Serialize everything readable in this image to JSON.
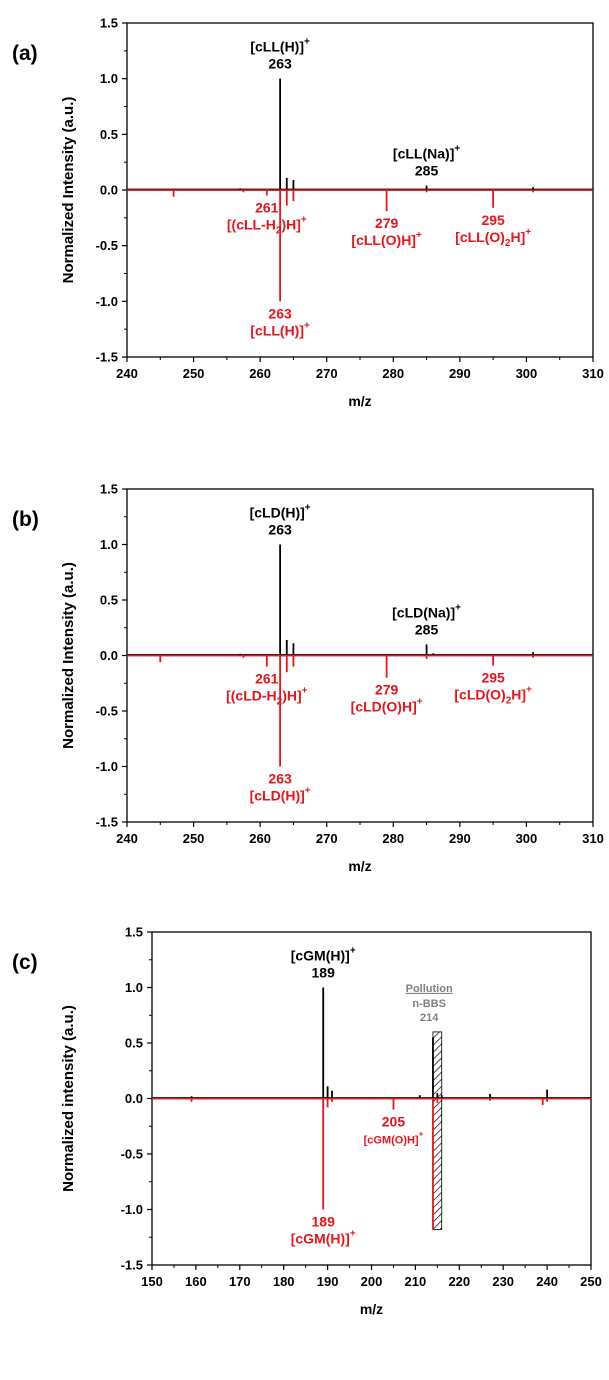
{
  "colors": {
    "measured": "#000000",
    "simulated": "#e8141b",
    "pollution": "#808080"
  },
  "chart_data": [
    {
      "type": "line",
      "panel_label": "(a)",
      "xlabel": "m/z",
      "ylabel": "Normalized Intensity (a.u.)",
      "xlim": [
        240,
        310
      ],
      "ylim": [
        -1.5,
        1.5
      ],
      "xticks": [
        "240",
        "250",
        "260",
        "270",
        "280",
        "290",
        "300",
        "310"
      ],
      "yticks": [
        "1.5",
        "1.0",
        "0.5",
        "0.0",
        "-0.5",
        "-1.0",
        "-1.5"
      ],
      "series": [
        {
          "color": "#000000",
          "peaks": [
            [
              247,
              0.01
            ],
            [
              257,
              0.015
            ],
            [
              258,
              0.01
            ],
            [
              262,
              0.01
            ],
            [
              263,
              1.0
            ],
            [
              264,
              0.11
            ],
            [
              265,
              0.09
            ],
            [
              269,
              0.01
            ],
            [
              279,
              0.01
            ],
            [
              285,
              0.04
            ],
            [
              286,
              0.01
            ],
            [
              301,
              0.025
            ]
          ]
        },
        {
          "color": "#e8141b",
          "peaks": [
            [
              247,
              -0.06
            ],
            [
              257.5,
              -0.02
            ],
            [
              261,
              -0.05
            ],
            [
              263,
              -1.0
            ],
            [
              264,
              -0.14
            ],
            [
              265,
              -0.1
            ],
            [
              279,
              -0.19
            ],
            [
              285,
              -0.02
            ],
            [
              295,
              -0.16
            ],
            [
              301,
              -0.02
            ]
          ]
        }
      ],
      "annotations": [
        {
          "name": "peak-label-263-top",
          "x": 263,
          "y": 1.0,
          "side": "top",
          "color": "#000000",
          "lines": [
            {
              "pre": "[cLL(H)]",
              "sup": "+"
            },
            {
              "pre": "263"
            }
          ]
        },
        {
          "name": "peak-label-285-top",
          "x": 285,
          "y": 0.04,
          "side": "top",
          "color": "#000000",
          "lines": [
            {
              "pre": "[cLL(Na)]",
              "sup": "+"
            },
            {
              "pre": "285"
            }
          ]
        },
        {
          "name": "peak-label-261-bottom",
          "x": 261,
          "y": -0.05,
          "side": "bottom",
          "color": "#e8141b",
          "lines": [
            {
              "pre": "261"
            },
            {
              "pre": "[(cLL-H",
              "sub": "2",
              "post": ")H]",
              "sup": "+"
            }
          ]
        },
        {
          "name": "peak-label-279-bottom",
          "x": 279,
          "y": -0.19,
          "side": "bottom",
          "color": "#e8141b",
          "lines": [
            {
              "pre": "279"
            },
            {
              "pre": "[cLL(O)H]",
              "sup": "+"
            }
          ]
        },
        {
          "name": "peak-label-295-bottom",
          "x": 295,
          "y": -0.16,
          "side": "bottom",
          "color": "#e8141b",
          "lines": [
            {
              "pre": "295"
            },
            {
              "pre": "[cLL(O)",
              "sub": "2",
              "post": "H]",
              "sup": "+"
            }
          ]
        },
        {
          "name": "peak-label-263-bottom",
          "x": 263,
          "y": -1.0,
          "side": "bottom",
          "color": "#e8141b",
          "lines": [
            {
              "pre": "263"
            },
            {
              "pre": "[cLL(H)]",
              "sup": "+"
            }
          ]
        }
      ]
    },
    {
      "type": "line",
      "panel_label": "(b)",
      "xlabel": "m/z",
      "ylabel": "Normalized Intensity (a.u.)",
      "xlim": [
        240,
        310
      ],
      "ylim": [
        -1.5,
        1.5
      ],
      "xticks": [
        "240",
        "250",
        "260",
        "270",
        "280",
        "290",
        "300",
        "310"
      ],
      "yticks": [
        "1.5",
        "1.0",
        "0.5",
        "0.0",
        "-0.5",
        "-1.0",
        "-1.5"
      ],
      "series": [
        {
          "color": "#000000",
          "peaks": [
            [
              245,
              0.01
            ],
            [
              257,
              0.015
            ],
            [
              258,
              0.012
            ],
            [
              263,
              1.0
            ],
            [
              264,
              0.14
            ],
            [
              265,
              0.11
            ],
            [
              279,
              0.01
            ],
            [
              285,
              0.1
            ],
            [
              286,
              0.02
            ],
            [
              301,
              0.03
            ]
          ]
        },
        {
          "color": "#e8141b",
          "peaks": [
            [
              245,
              -0.06
            ],
            [
              257.5,
              -0.02
            ],
            [
              261,
              -0.1
            ],
            [
              263,
              -1.0
            ],
            [
              264,
              -0.15
            ],
            [
              265,
              -0.1
            ],
            [
              279,
              -0.2
            ],
            [
              285,
              -0.03
            ],
            [
              295,
              -0.09
            ],
            [
              301,
              -0.02
            ]
          ]
        }
      ],
      "annotations": [
        {
          "name": "peak-label-263-top",
          "x": 263,
          "y": 1.0,
          "side": "top",
          "color": "#000000",
          "lines": [
            {
              "pre": "[cLD(H)]",
              "sup": "+"
            },
            {
              "pre": "263"
            }
          ]
        },
        {
          "name": "peak-label-285-top",
          "x": 285,
          "y": 0.1,
          "side": "top",
          "color": "#000000",
          "lines": [
            {
              "pre": "[cLD(Na)]",
              "sup": "+"
            },
            {
              "pre": "285"
            }
          ]
        },
        {
          "name": "peak-label-261-bottom",
          "x": 261,
          "y": -0.1,
          "side": "bottom",
          "color": "#e8141b",
          "lines": [
            {
              "pre": "261"
            },
            {
              "pre": "[(cLD-H",
              "sub": "2",
              "post": ")H]",
              "sup": "+"
            }
          ]
        },
        {
          "name": "peak-label-279-bottom",
          "x": 279,
          "y": -0.2,
          "side": "bottom",
          "color": "#e8141b",
          "lines": [
            {
              "pre": "279"
            },
            {
              "pre": "[cLD(O)H]",
              "sup": "+"
            }
          ]
        },
        {
          "name": "peak-label-295-bottom",
          "x": 295,
          "y": -0.09,
          "side": "bottom",
          "color": "#e8141b",
          "lines": [
            {
              "pre": "295"
            },
            {
              "pre": "[cLD(O)",
              "sub": "2",
              "post": "H]",
              "sup": "+"
            }
          ]
        },
        {
          "name": "peak-label-263-bottom",
          "x": 263,
          "y": -1.0,
          "side": "bottom",
          "color": "#e8141b",
          "lines": [
            {
              "pre": "263"
            },
            {
              "pre": "[cLD(H)]",
              "sup": "+"
            }
          ]
        }
      ]
    },
    {
      "type": "line",
      "panel_label": "(c)",
      "xlabel": "m/z",
      "ylabel": "Normalized intensity (a.u.)",
      "xlim": [
        150,
        250
      ],
      "ylim": [
        -1.5,
        1.5
      ],
      "xticks": [
        "150",
        "160",
        "170",
        "180",
        "190",
        "200",
        "210",
        "220",
        "230",
        "240",
        "250"
      ],
      "yticks": [
        "1.5",
        "1.0",
        "0.5",
        "0.0",
        "-0.5",
        "-1.0",
        "-1.5"
      ],
      "series": [
        {
          "color": "#000000",
          "peaks": [
            [
              159,
              0.02
            ],
            [
              189,
              1.0
            ],
            [
              190,
              0.11
            ],
            [
              191,
              0.07
            ],
            [
              211,
              0.03
            ],
            [
              214,
              0.55
            ],
            [
              215,
              0.05
            ],
            [
              216,
              0.03
            ],
            [
              227,
              0.04
            ],
            [
              240,
              0.08
            ],
            [
              241,
              0.01
            ]
          ]
        },
        {
          "color": "#e8141b",
          "peaks": [
            [
              159,
              -0.03
            ],
            [
              189,
              -1.0
            ],
            [
              190,
              -0.08
            ],
            [
              191,
              -0.03
            ],
            [
              205,
              -0.1
            ],
            [
              214,
              -1.18
            ],
            [
              215,
              -0.04
            ],
            [
              227,
              -0.02
            ],
            [
              239,
              -0.06
            ],
            [
              240,
              -0.03
            ]
          ]
        }
      ],
      "pollution_band": {
        "x": [
          214,
          216
        ],
        "y": [
          -1.18,
          0.6
        ],
        "title": "Pollution",
        "name": "n-BBS",
        "mz": "214"
      },
      "annotations": [
        {
          "name": "peak-label-189-top",
          "x": 189,
          "y": 1.0,
          "side": "top",
          "color": "#000000",
          "lines": [
            {
              "pre": "[cGM(H)]",
              "sup": "+"
            },
            {
              "pre": "189"
            }
          ]
        },
        {
          "name": "peak-label-205-bottom",
          "x": 205,
          "y": -0.1,
          "side": "bottom",
          "color": "#e8141b",
          "small_second": true,
          "lines": [
            {
              "pre": "205"
            },
            {
              "pre": "[cGM(O)H]",
              "sup": "+"
            }
          ]
        },
        {
          "name": "peak-label-189-bottom",
          "x": 189,
          "y": -1.0,
          "side": "bottom",
          "color": "#e8141b",
          "lines": [
            {
              "pre": "189"
            },
            {
              "pre": "[cGM(H)]",
              "sup": "+"
            }
          ]
        }
      ]
    }
  ]
}
